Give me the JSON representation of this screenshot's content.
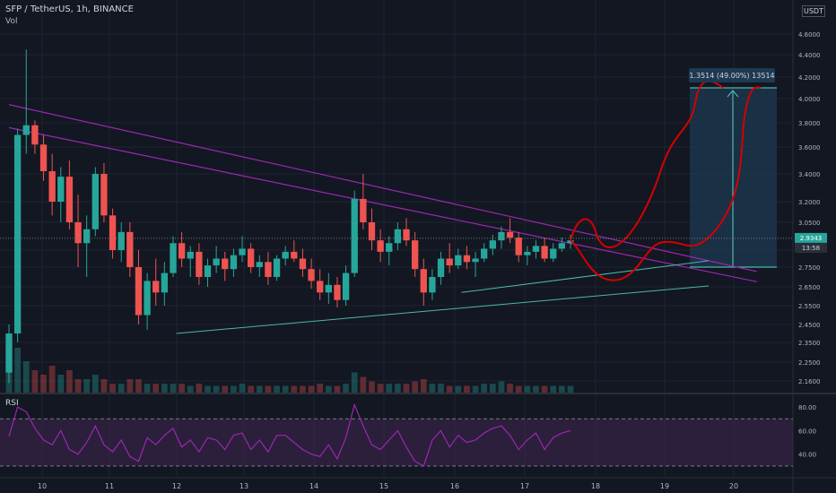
{
  "header": {
    "title": "SFP / TetherUS, 1h, BINANCE",
    "volume_label": "Vol",
    "rsi_label": "RSI",
    "currency_badge": "USDT"
  },
  "price_box": {
    "value": "2.9343",
    "countdown": "13:58"
  },
  "measure": {
    "label": "1.3514 (49.00%) 13514"
  },
  "colors": {
    "background": "#131722",
    "grid": "#1f2330",
    "up": "#26a69a",
    "down": "#ef5350",
    "resistance": "#9c27b0",
    "support": "#4db6ac",
    "projection": "#d50000",
    "measure_fill": "#1e3a52",
    "rsi_line": "#9c27b0",
    "rsi_band": "#4a2a5a"
  },
  "chart_data": {
    "type": "candlestick",
    "y_ticks": [
      "4.6000",
      "4.4000",
      "4.2000",
      "4.0000",
      "3.8000",
      "3.6000",
      "3.4000",
      "3.2000",
      "3.0500",
      "2.8500",
      "2.7500",
      "2.6500",
      "2.5500",
      "2.4500",
      "2.3500",
      "2.2500",
      "2.1600"
    ],
    "x_ticks": [
      "10",
      "11",
      "12",
      "13",
      "14",
      "15",
      "16",
      "17",
      "18",
      "19",
      "20"
    ],
    "rsi_ticks": [
      "80.00",
      "60.00",
      "40.00"
    ],
    "rsi_levels": [
      70,
      30
    ],
    "ohlc": [
      [
        2.2,
        2.45,
        2.15,
        2.4
      ],
      [
        2.4,
        3.75,
        2.35,
        3.7
      ],
      [
        3.7,
        4.45,
        3.55,
        3.78
      ],
      [
        3.78,
        3.82,
        3.55,
        3.62
      ],
      [
        3.62,
        3.7,
        3.35,
        3.42
      ],
      [
        3.42,
        3.55,
        3.1,
        3.2
      ],
      [
        3.2,
        3.45,
        3.05,
        3.38
      ],
      [
        3.38,
        3.5,
        3.0,
        3.05
      ],
      [
        3.05,
        3.25,
        2.75,
        2.9
      ],
      [
        2.9,
        3.1,
        2.7,
        3.0
      ],
      [
        3.0,
        3.45,
        2.95,
        3.4
      ],
      [
        3.4,
        3.48,
        3.05,
        3.1
      ],
      [
        3.1,
        3.15,
        2.8,
        2.85
      ],
      [
        2.85,
        3.05,
        2.78,
        2.98
      ],
      [
        2.98,
        3.05,
        2.7,
        2.75
      ],
      [
        2.75,
        2.85,
        2.45,
        2.5
      ],
      [
        2.5,
        2.72,
        2.42,
        2.68
      ],
      [
        2.68,
        2.8,
        2.55,
        2.62
      ],
      [
        2.62,
        2.78,
        2.55,
        2.72
      ],
      [
        2.72,
        2.95,
        2.7,
        2.9
      ],
      [
        2.9,
        2.98,
        2.75,
        2.8
      ],
      [
        2.8,
        2.88,
        2.7,
        2.84
      ],
      [
        2.84,
        2.9,
        2.66,
        2.7
      ],
      [
        2.7,
        2.8,
        2.65,
        2.76
      ],
      [
        2.76,
        2.88,
        2.72,
        2.8
      ],
      [
        2.8,
        2.84,
        2.68,
        2.74
      ],
      [
        2.74,
        2.86,
        2.7,
        2.82
      ],
      [
        2.82,
        2.95,
        2.78,
        2.86
      ],
      [
        2.86,
        2.9,
        2.72,
        2.75
      ],
      [
        2.75,
        2.82,
        2.7,
        2.78
      ],
      [
        2.78,
        2.84,
        2.66,
        2.7
      ],
      [
        2.7,
        2.82,
        2.68,
        2.8
      ],
      [
        2.8,
        2.88,
        2.76,
        2.84
      ],
      [
        2.84,
        2.92,
        2.78,
        2.8
      ],
      [
        2.8,
        2.86,
        2.7,
        2.74
      ],
      [
        2.74,
        2.8,
        2.64,
        2.68
      ],
      [
        2.68,
        2.74,
        2.58,
        2.62
      ],
      [
        2.62,
        2.72,
        2.56,
        2.66
      ],
      [
        2.66,
        2.7,
        2.54,
        2.58
      ],
      [
        2.58,
        2.76,
        2.55,
        2.72
      ],
      [
        2.72,
        3.28,
        2.7,
        3.22
      ],
      [
        3.22,
        3.4,
        3.0,
        3.05
      ],
      [
        3.05,
        3.15,
        2.85,
        2.92
      ],
      [
        2.92,
        3.0,
        2.78,
        2.84
      ],
      [
        2.84,
        2.95,
        2.76,
        2.9
      ],
      [
        2.9,
        3.05,
        2.85,
        3.0
      ],
      [
        3.0,
        3.08,
        2.88,
        2.92
      ],
      [
        2.92,
        2.98,
        2.7,
        2.74
      ],
      [
        2.74,
        2.8,
        2.55,
        2.62
      ],
      [
        2.62,
        2.74,
        2.58,
        2.7
      ],
      [
        2.7,
        2.84,
        2.66,
        2.8
      ],
      [
        2.8,
        2.9,
        2.72,
        2.76
      ],
      [
        2.76,
        2.86,
        2.74,
        2.82
      ],
      [
        2.82,
        2.88,
        2.74,
        2.78
      ],
      [
        2.78,
        2.84,
        2.7,
        2.8
      ],
      [
        2.8,
        2.9,
        2.78,
        2.86
      ],
      [
        2.86,
        2.96,
        2.82,
        2.92
      ],
      [
        2.92,
        3.02,
        2.86,
        2.98
      ],
      [
        2.98,
        3.08,
        2.9,
        2.94
      ],
      [
        2.94,
        2.98,
        2.78,
        2.82
      ],
      [
        2.82,
        2.88,
        2.76,
        2.84
      ],
      [
        2.84,
        2.92,
        2.8,
        2.88
      ],
      [
        2.88,
        2.94,
        2.78,
        2.8
      ],
      [
        2.8,
        2.9,
        2.78,
        2.86
      ],
      [
        2.86,
        2.94,
        2.84,
        2.9
      ],
      [
        2.9,
        2.96,
        2.86,
        2.92
      ]
    ],
    "volume": [
      0.9,
      1.0,
      0.7,
      0.5,
      0.4,
      0.6,
      0.4,
      0.5,
      0.3,
      0.3,
      0.4,
      0.3,
      0.2,
      0.2,
      0.3,
      0.3,
      0.2,
      0.2,
      0.2,
      0.2,
      0.2,
      0.15,
      0.2,
      0.15,
      0.15,
      0.15,
      0.15,
      0.2,
      0.15,
      0.15,
      0.15,
      0.15,
      0.15,
      0.15,
      0.15,
      0.15,
      0.2,
      0.15,
      0.15,
      0.2,
      0.45,
      0.35,
      0.25,
      0.2,
      0.2,
      0.2,
      0.2,
      0.25,
      0.3,
      0.2,
      0.2,
      0.15,
      0.15,
      0.15,
      0.15,
      0.2,
      0.2,
      0.25,
      0.2,
      0.15,
      0.15,
      0.15,
      0.15,
      0.15,
      0.15,
      0.15
    ],
    "rsi": [
      55,
      80,
      76,
      62,
      52,
      48,
      60,
      44,
      40,
      50,
      64,
      48,
      42,
      52,
      38,
      34,
      54,
      48,
      56,
      62,
      46,
      52,
      42,
      54,
      52,
      44,
      56,
      58,
      44,
      52,
      42,
      56,
      56,
      50,
      44,
      40,
      38,
      48,
      36,
      54,
      82,
      64,
      48,
      44,
      52,
      60,
      46,
      34,
      30,
      52,
      60,
      46,
      56,
      50,
      52,
      58,
      62,
      64,
      56,
      44,
      52,
      58,
      44,
      54,
      58,
      60
    ],
    "resistance_lines": [
      [
        [
          3.95,
          0
        ],
        [
          2.84,
          71
        ]
      ],
      [
        [
          3.76,
          0
        ],
        [
          2.78,
          71
        ]
      ]
    ],
    "support_lines": [
      [
        [
          2.4,
          9
        ],
        [
          2.7,
          71
        ]
      ],
      [
        [
          2.62,
          42
        ],
        [
          2.84,
          68
        ]
      ]
    ],
    "measure_range": {
      "from": 2.75,
      "to": 4.1
    }
  }
}
